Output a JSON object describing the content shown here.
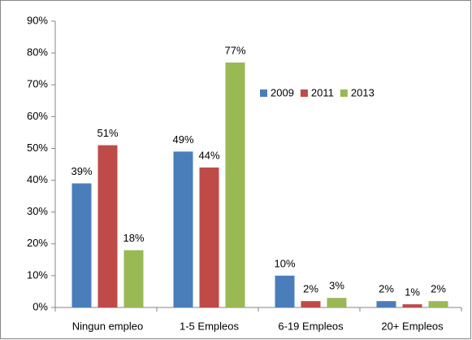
{
  "chart_data": {
    "type": "bar",
    "categories": [
      "Ningun empleo",
      "1-5 Empleos",
      "6-19 Empleos",
      "20+ Empleos"
    ],
    "series": [
      {
        "name": "2009",
        "color": "#4a7ebb",
        "values": [
          39,
          49,
          10,
          2
        ],
        "value_labels": [
          "39%",
          "49%",
          "10%",
          "2%"
        ]
      },
      {
        "name": "2011",
        "color": "#be4b48",
        "values": [
          51,
          44,
          2,
          1
        ],
        "value_labels": [
          "51%",
          "44%",
          "2%",
          "1%"
        ]
      },
      {
        "name": "2013",
        "color": "#98b954",
        "values": [
          18,
          77,
          3,
          2
        ],
        "value_labels": [
          "18%",
          "77%",
          "3%",
          "2%"
        ]
      }
    ],
    "ylim": [
      0,
      90
    ],
    "yticks": [
      {
        "value": 0,
        "label": "0%"
      },
      {
        "value": 10,
        "label": "10%"
      },
      {
        "value": 20,
        "label": "20%"
      },
      {
        "value": 30,
        "label": "30%"
      },
      {
        "value": 40,
        "label": "40%"
      },
      {
        "value": 50,
        "label": "50%"
      },
      {
        "value": 60,
        "label": "60%"
      },
      {
        "value": 70,
        "label": "70%"
      },
      {
        "value": 80,
        "label": "80%"
      },
      {
        "value": 90,
        "label": "90%"
      }
    ],
    "grid": false,
    "legend": "right"
  }
}
